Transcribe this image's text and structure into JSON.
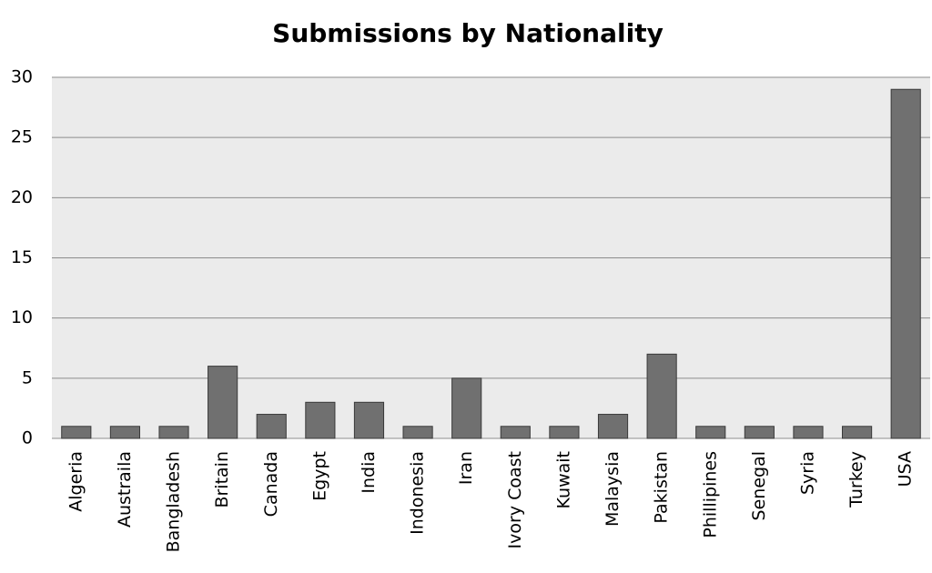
{
  "chart_data": {
    "type": "bar",
    "title": "Submissions by Nationality",
    "categories": [
      "Algeria",
      "Austraila",
      "Bangladesh",
      "Britain",
      "Canada",
      "Egypt",
      "India",
      "Indonesia",
      "Iran",
      "Ivory Coast",
      "Kuwait",
      "Malaysia",
      "Pakistan",
      "Phillipines",
      "Senegal",
      "Syria",
      "Turkey",
      "USA"
    ],
    "values": [
      1,
      1,
      1,
      6,
      2,
      3,
      3,
      1,
      5,
      1,
      1,
      2,
      7,
      1,
      1,
      1,
      1,
      29
    ],
    "color": "#707070",
    "ylim": [
      0,
      30
    ],
    "yticks": [
      0,
      5,
      10,
      15,
      20,
      25,
      30
    ],
    "grid": true
  }
}
